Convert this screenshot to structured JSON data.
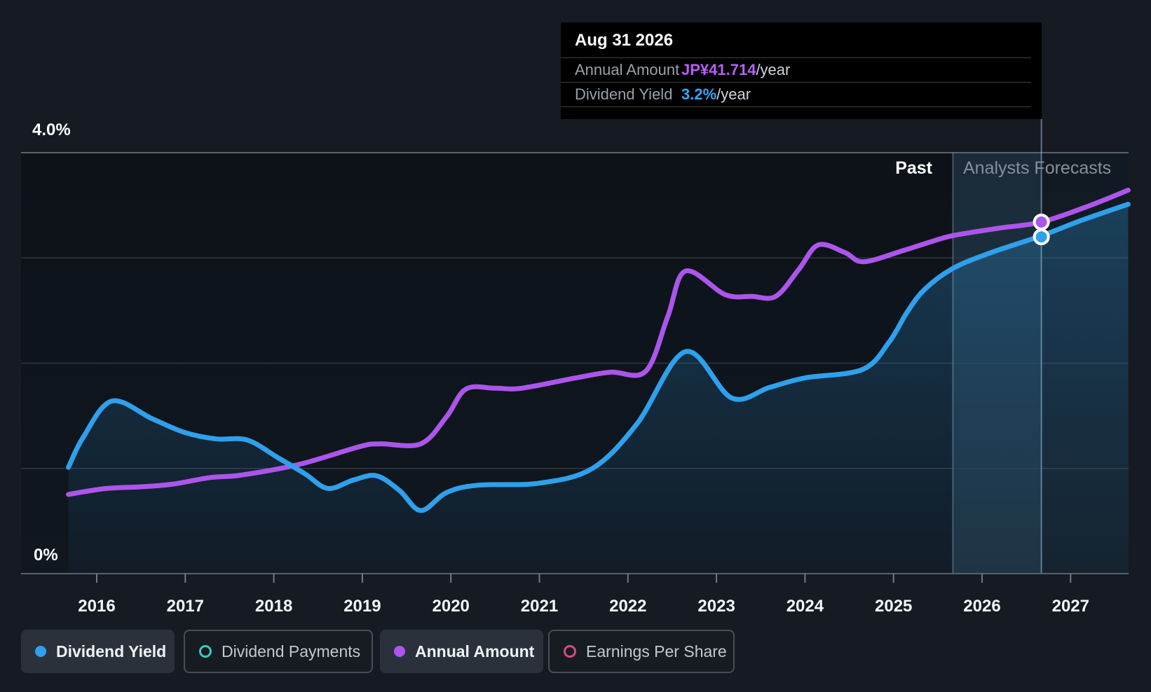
{
  "tooltip": {
    "date": "Aug 31 2026",
    "rows": [
      {
        "label": "Annual Amount",
        "value": "JP¥41.714",
        "suffix": "/year",
        "color": "#b560f2"
      },
      {
        "label": "Dividend Yield",
        "value": "3.2%",
        "suffix": "/year",
        "color": "#38a6f5"
      }
    ]
  },
  "axis": {
    "y_top_label": "4.0%",
    "y_bottom_label": "0%"
  },
  "regions": {
    "past_label": "Past",
    "forecast_label": "Analysts Forecasts"
  },
  "legend": [
    {
      "label": "Dividend Yield",
      "color": "#2f9ff0",
      "style": "filled",
      "active": true
    },
    {
      "label": "Dividend Payments",
      "color": "#41c7b9",
      "style": "outline",
      "active": false
    },
    {
      "label": "Annual Amount",
      "color": "#ad55ee",
      "style": "filled",
      "active": true
    },
    {
      "label": "Earnings Per Share",
      "color": "#d44b82",
      "style": "outline",
      "active": false
    }
  ],
  "colors": {
    "yield_line": "#2fa0ec",
    "amount_line": "#ac55ea",
    "grid_major": "#59626c",
    "grid_minor": "#2e3740",
    "page_bg": "#161b23",
    "tooltip_bg": "#000000",
    "crosshair": "#9cc2db",
    "hover_band": "#5fa8d8"
  },
  "chart_data": {
    "type": "line",
    "x_ticks": [
      2016,
      2017,
      2018,
      2019,
      2020,
      2021,
      2022,
      2023,
      2024,
      2025,
      2026,
      2027
    ],
    "x_range_years": [
      2015.68,
      2027.65
    ],
    "y_axis": {
      "ticks_shown": [
        "0%",
        "4.0%"
      ],
      "range_pct": [
        0,
        4
      ],
      "gridlines_pct": [
        0,
        1,
        2,
        3,
        4
      ]
    },
    "past_forecast_divider_year": 2025.67,
    "hovered_point": {
      "date": "Aug 31 2026",
      "year": 2026.67,
      "annual_amount_jpy": 41.714,
      "dividend_yield_pct": 3.2
    },
    "legend_position": "bottom",
    "series": [
      {
        "name": "Dividend Yield",
        "unit": "%",
        "color": "#2fa0ec",
        "area_fill": true,
        "points": [
          [
            2015.68,
            1.01
          ],
          [
            2015.85,
            1.3
          ],
          [
            2016.17,
            1.64
          ],
          [
            2016.63,
            1.47
          ],
          [
            2017.0,
            1.34
          ],
          [
            2017.35,
            1.28
          ],
          [
            2017.7,
            1.27
          ],
          [
            2018.05,
            1.1
          ],
          [
            2018.35,
            0.95
          ],
          [
            2018.61,
            0.81
          ],
          [
            2018.9,
            0.89
          ],
          [
            2019.16,
            0.93
          ],
          [
            2019.42,
            0.79
          ],
          [
            2019.66,
            0.6
          ],
          [
            2019.95,
            0.77
          ],
          [
            2020.3,
            0.84
          ],
          [
            2021.0,
            0.86
          ],
          [
            2021.6,
            1.0
          ],
          [
            2022.1,
            1.42
          ],
          [
            2022.65,
            2.11
          ],
          [
            2023.17,
            1.67
          ],
          [
            2023.6,
            1.77
          ],
          [
            2024.0,
            1.86
          ],
          [
            2024.65,
            1.94
          ],
          [
            2024.95,
            2.2
          ],
          [
            2025.15,
            2.48
          ],
          [
            2025.35,
            2.7
          ],
          [
            2025.67,
            2.9
          ],
          [
            2026.1,
            3.05
          ],
          [
            2026.67,
            3.21
          ],
          [
            2027.1,
            3.35
          ],
          [
            2027.65,
            3.51
          ]
        ]
      },
      {
        "name": "Annual Amount",
        "unit": "JP¥/year",
        "color": "#ac55ea",
        "area_fill": false,
        "points": [
          [
            2015.68,
            9.4
          ],
          [
            2016.1,
            10.1
          ],
          [
            2016.5,
            10.3
          ],
          [
            2016.85,
            10.6
          ],
          [
            2017.28,
            11.4
          ],
          [
            2017.64,
            11.7
          ],
          [
            2018.3,
            13.0
          ],
          [
            2018.98,
            15.1
          ],
          [
            2019.2,
            15.4
          ],
          [
            2019.66,
            15.4
          ],
          [
            2019.95,
            18.6
          ],
          [
            2020.17,
            21.9
          ],
          [
            2020.5,
            22.0
          ],
          [
            2020.8,
            22.0
          ],
          [
            2021.4,
            23.2
          ],
          [
            2021.8,
            23.9
          ],
          [
            2022.2,
            24.0
          ],
          [
            2022.45,
            30.5
          ],
          [
            2022.65,
            35.9
          ],
          [
            2023.1,
            33.1
          ],
          [
            2023.4,
            32.9
          ],
          [
            2023.67,
            32.9
          ],
          [
            2023.93,
            36.1
          ],
          [
            2024.15,
            39.0
          ],
          [
            2024.45,
            38.1
          ],
          [
            2024.66,
            37.0
          ],
          [
            2025.1,
            38.3
          ],
          [
            2025.4,
            39.3
          ],
          [
            2025.67,
            40.1
          ],
          [
            2026.2,
            41.0
          ],
          [
            2026.67,
            41.714
          ],
          [
            2027.2,
            43.6
          ],
          [
            2027.65,
            45.5
          ]
        ]
      }
    ]
  }
}
